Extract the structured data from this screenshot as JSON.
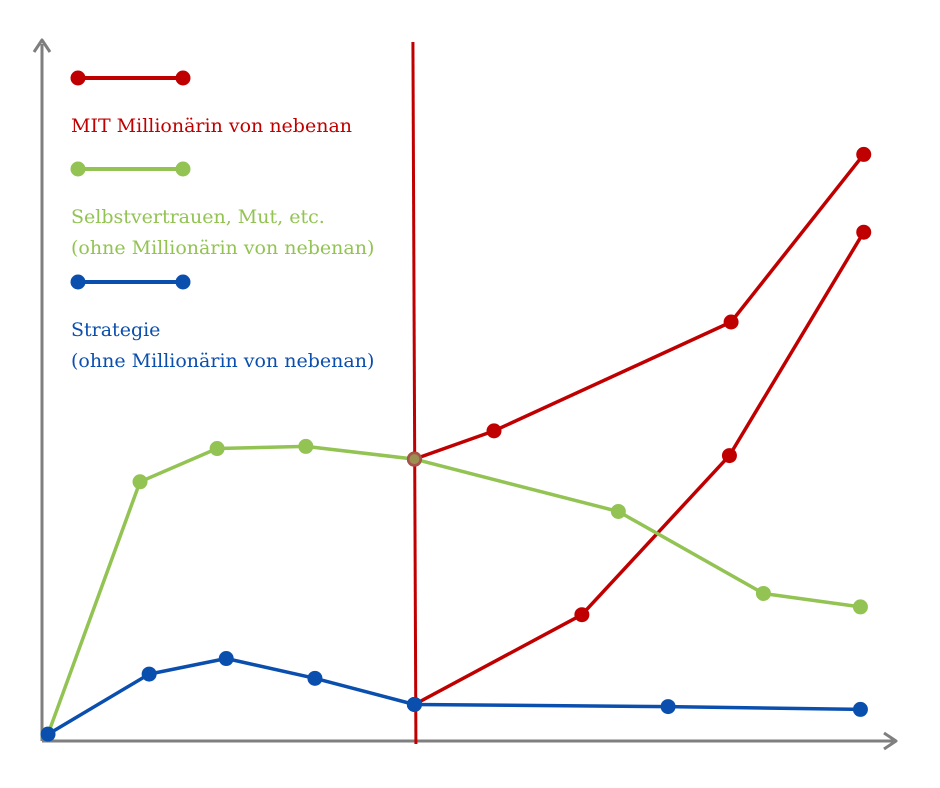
{
  "chart_data": {
    "type": "line",
    "title": "",
    "xlabel": "",
    "ylabel": "",
    "xlim": [
      0,
      100
    ],
    "ylim": [
      0,
      100
    ],
    "grid": false,
    "legend_position": "top-left",
    "marker": {
      "x": 44.2
    },
    "legend": [
      {
        "key": "red",
        "lines": [
          "MIT Millionärin von nebenan"
        ]
      },
      {
        "key": "green",
        "lines": [
          "Selbstvertrauen, Mut, etc.",
          "(ohne Millionärin von nebenan)"
        ]
      },
      {
        "key": "blue",
        "lines": [
          "Strategie",
          "(ohne Millionärin von nebenan)"
        ]
      }
    ],
    "series": [
      {
        "key": "red-upper",
        "color": "#c00000",
        "points": [
          [
            44.2,
            39.3
          ],
          [
            53.8,
            43.3
          ],
          [
            82.4,
            58.7
          ],
          [
            98.4,
            82.4
          ]
        ]
      },
      {
        "key": "red-lower",
        "color": "#c00000",
        "points": [
          [
            44.2,
            4.6
          ],
          [
            64.4,
            17.3
          ],
          [
            82.2,
            39.8
          ],
          [
            98.4,
            71.4
          ]
        ]
      },
      {
        "key": "green",
        "color": "#92c353",
        "points": [
          [
            0,
            0.4
          ],
          [
            11.1,
            36.1
          ],
          [
            20.4,
            40.8
          ],
          [
            31.1,
            41.1
          ],
          [
            44.2,
            39.3
          ],
          [
            68.8,
            31.9
          ],
          [
            86.3,
            20.3
          ],
          [
            98.0,
            18.4
          ]
        ]
      },
      {
        "key": "blue",
        "color": "#0b4fae",
        "points": [
          [
            0,
            0.4
          ],
          [
            12.2,
            8.9
          ],
          [
            21.5,
            11.1
          ],
          [
            32.2,
            8.3
          ],
          [
            44.2,
            4.6
          ],
          [
            74.8,
            4.3
          ],
          [
            98.0,
            3.9
          ]
        ]
      }
    ]
  }
}
